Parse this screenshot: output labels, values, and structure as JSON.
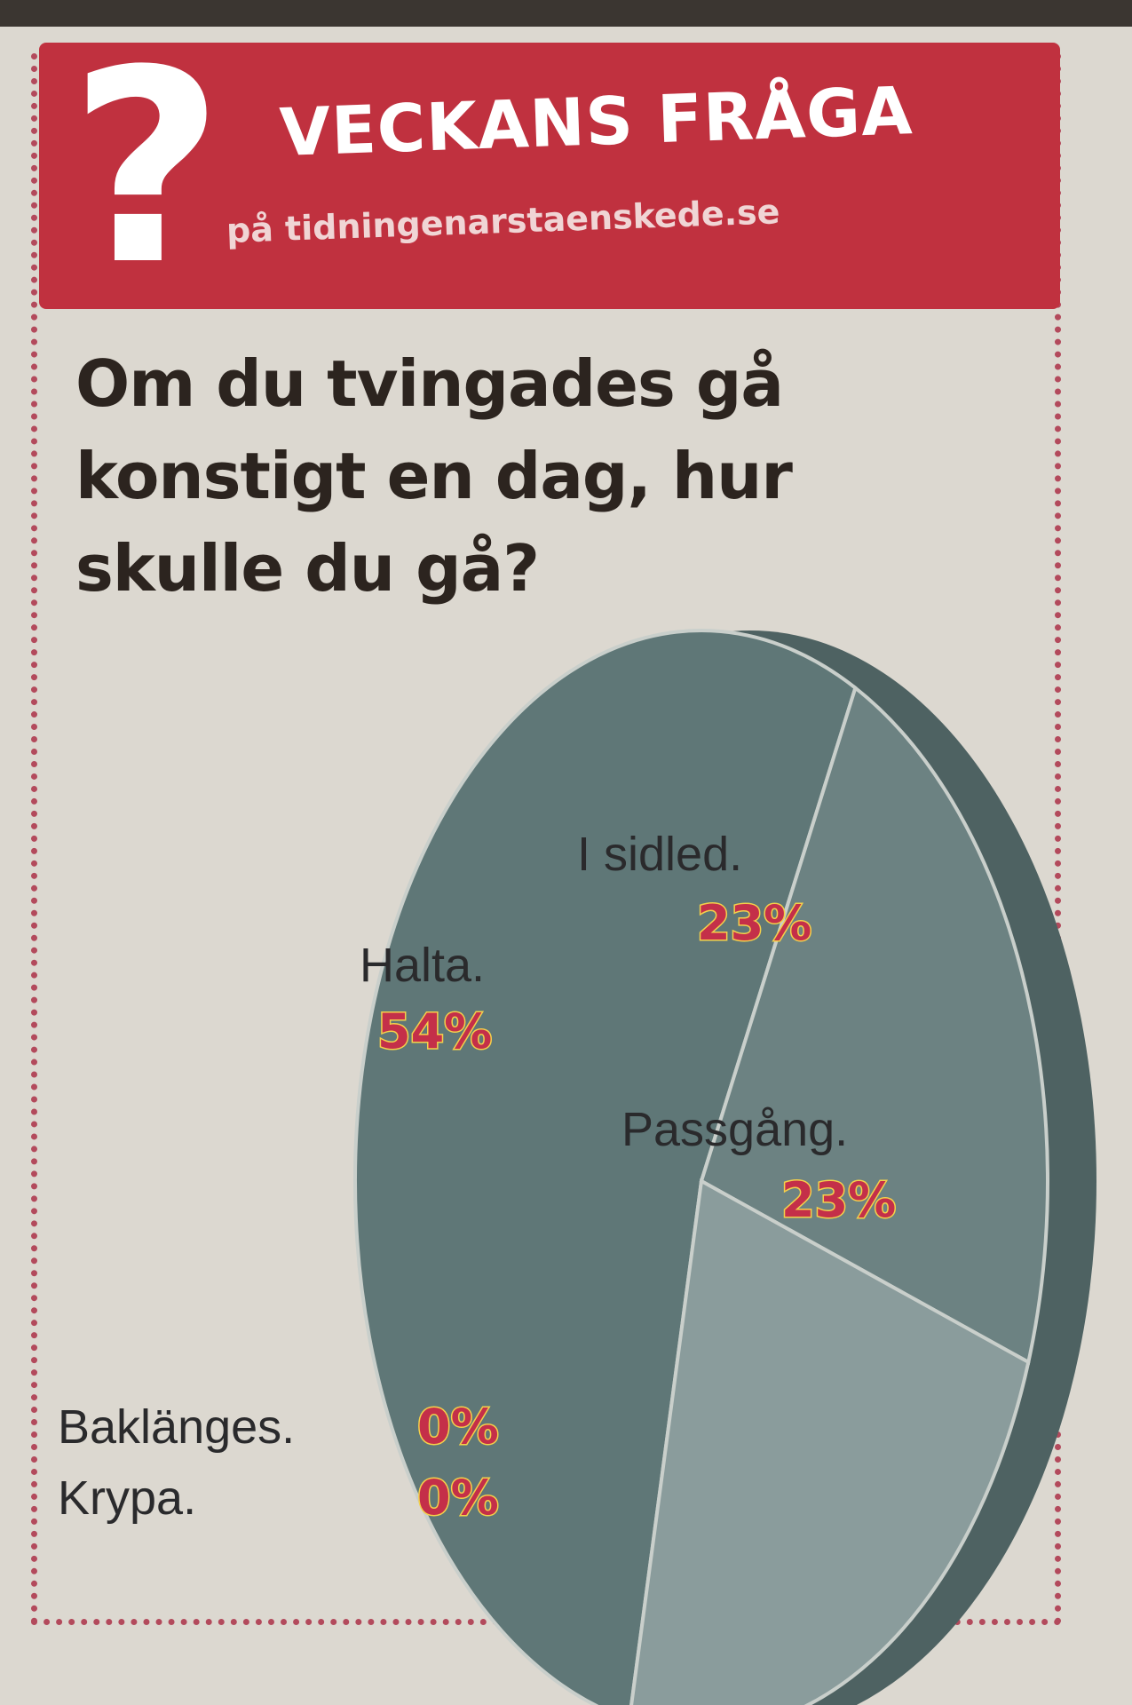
{
  "header": {
    "icon": "question-mark-icon",
    "title": "VECKANS FRÅGA",
    "subtitle": "på tidningenarstaenskede.se",
    "color": "#c0313f"
  },
  "question": {
    "lines": [
      "Om du tvingades gå",
      "konstigt en dag, hur",
      "skulle du gå?"
    ]
  },
  "chart_data": {
    "type": "pie",
    "slices": [
      {
        "label": "Halta.",
        "value": 54,
        "value_label": "54%",
        "color": "#5f7777"
      },
      {
        "label": "I sidled.",
        "value": 23,
        "value_label": "23%",
        "color": "#6c8282"
      },
      {
        "label": "Passgång.",
        "value": 23,
        "value_label": "23%",
        "color": "#8a9c9c"
      },
      {
        "label": "Baklänges.",
        "value": 0,
        "value_label": "0%",
        "color": "#5f7777"
      },
      {
        "label": "Krypa.",
        "value": 0,
        "value_label": "0%",
        "color": "#5f7777"
      }
    ],
    "value_color": "#c42f49",
    "value_outline_color": "#f4d04a"
  }
}
